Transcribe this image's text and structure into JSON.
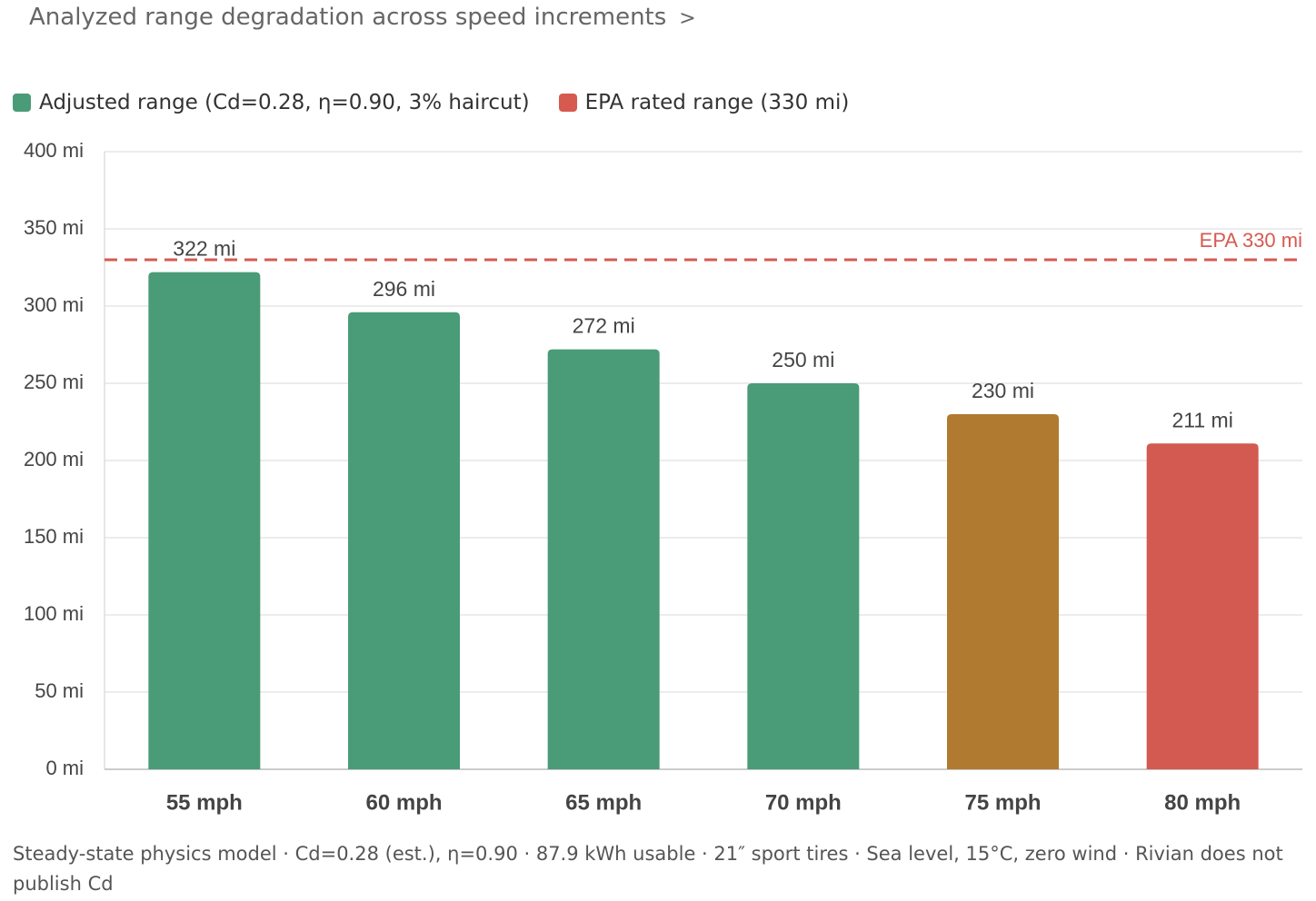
{
  "chart_data": {
    "type": "bar",
    "title": "Analyzed range degradation across speed increments",
    "categories": [
      "55 mph",
      "60 mph",
      "65 mph",
      "70 mph",
      "75 mph",
      "80 mph"
    ],
    "series": [
      {
        "name": "Adjusted range (Cd=0.28, η=0.90, 3% haircut)",
        "color": "#4a9b78",
        "colors": [
          "#4a9b78",
          "#4a9b78",
          "#4a9b78",
          "#4a9b78",
          "#b07a30",
          "#d35a50"
        ],
        "values": [
          322,
          296,
          272,
          250,
          230,
          211
        ],
        "value_labels": [
          "322 mi",
          "296 mi",
          "272 mi",
          "250 mi",
          "230 mi",
          "211 mi"
        ]
      }
    ],
    "reference_line": {
      "name": "EPA rated range (330 mi)",
      "value": 330,
      "label": "EPA 330 mi",
      "color": "#d65a50"
    },
    "ylim": [
      0,
      400
    ],
    "yticks": [
      {
        "value": 0,
        "label": "0 mi"
      },
      {
        "value": 50,
        "label": "50 mi"
      },
      {
        "value": 100,
        "label": "100 mi"
      },
      {
        "value": 150,
        "label": "150 mi"
      },
      {
        "value": 200,
        "label": "200 mi"
      },
      {
        "value": 250,
        "label": "250 mi"
      },
      {
        "value": 300,
        "label": "300 mi"
      },
      {
        "value": 350,
        "label": "350 mi"
      },
      {
        "value": 400,
        "label": "400 mi"
      }
    ],
    "grid": true,
    "note": "Steady-state physics model · Cd=0.28 (est.), η=0.90 · 87.9 kWh usable · 21″ sport tires · Sea level, 15°C, zero wind · Rivian does not publish Cd"
  }
}
